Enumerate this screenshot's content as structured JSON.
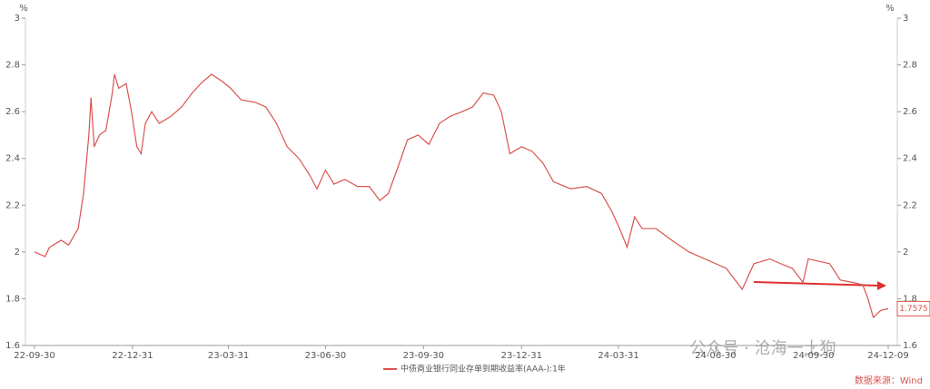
{
  "chart_data": {
    "type": "line",
    "y_unit": "%",
    "y2_unit": "%",
    "x": [
      "22-09-30",
      "22-10-10",
      "22-10-14",
      "22-10-25",
      "22-11-01",
      "22-11-10",
      "22-11-15",
      "22-11-20",
      "22-11-22",
      "22-11-25",
      "22-11-30",
      "22-12-06",
      "22-12-12",
      "22-12-14",
      "22-12-18",
      "22-12-25",
      "22-12-30",
      "23-01-04",
      "23-01-08",
      "23-01-12",
      "23-01-18",
      "23-01-25",
      "23-02-05",
      "23-02-15",
      "23-02-25",
      "23-03-05",
      "23-03-15",
      "23-03-25",
      "23-04-02",
      "23-04-12",
      "23-04-25",
      "23-05-05",
      "23-05-15",
      "23-05-25",
      "23-06-05",
      "23-06-15",
      "23-06-22",
      "23-06-30",
      "23-07-08",
      "23-07-18",
      "23-07-30",
      "23-08-10",
      "23-08-20",
      "23-08-28",
      "23-09-05",
      "23-09-15",
      "23-09-25",
      "23-10-05",
      "23-10-15",
      "23-10-25",
      "23-11-05",
      "23-11-15",
      "23-11-25",
      "23-12-05",
      "23-12-12",
      "23-12-20",
      "23-12-31",
      "24-01-10",
      "24-01-20",
      "24-01-30",
      "24-02-15",
      "24-03-01",
      "24-03-15",
      "24-03-25",
      "24-04-01",
      "24-04-08",
      "24-04-15",
      "24-04-22",
      "24-05-05",
      "24-05-20",
      "24-06-05",
      "24-06-20",
      "24-06-30",
      "24-07-10",
      "24-07-20",
      "24-07-25",
      "24-08-05",
      "24-08-20",
      "24-08-30",
      "24-09-10",
      "24-09-20",
      "24-09-25",
      "24-10-05",
      "24-10-15",
      "24-10-25",
      "24-11-05",
      "24-11-15",
      "24-11-20",
      "24-11-25",
      "24-12-02",
      "24-12-09"
    ],
    "series": [
      {
        "name": "中债商业银行同业存单到期收益率(AAA-):1年",
        "color": "#d9534f",
        "values": [
          2.0,
          1.98,
          2.02,
          2.05,
          2.03,
          2.1,
          2.25,
          2.5,
          2.66,
          2.45,
          2.5,
          2.52,
          2.68,
          2.76,
          2.7,
          2.72,
          2.6,
          2.45,
          2.42,
          2.55,
          2.6,
          2.55,
          2.58,
          2.62,
          2.68,
          2.72,
          2.76,
          2.73,
          2.7,
          2.65,
          2.64,
          2.62,
          2.55,
          2.45,
          2.4,
          2.33,
          2.27,
          2.35,
          2.29,
          2.31,
          2.28,
          2.28,
          2.22,
          2.25,
          2.35,
          2.48,
          2.5,
          2.46,
          2.55,
          2.58,
          2.6,
          2.62,
          2.68,
          2.67,
          2.6,
          2.42,
          2.45,
          2.43,
          2.38,
          2.3,
          2.27,
          2.28,
          2.25,
          2.17,
          2.1,
          2.02,
          2.15,
          2.1,
          2.1,
          2.05,
          2.0,
          1.97,
          1.95,
          1.93,
          1.87,
          1.84,
          1.95,
          1.97,
          1.95,
          1.93,
          1.87,
          1.97,
          1.96,
          1.95,
          1.88,
          1.87,
          1.86,
          1.8,
          1.72,
          1.75,
          1.7575
        ]
      }
    ],
    "xlim": [
      "22-09-30",
      "24-12-09"
    ],
    "xticks": [
      "22-09-30",
      "22-12-31",
      "23-03-31",
      "23-06-30",
      "23-09-30",
      "23-12-31",
      "24-03-31",
      "24-06-30",
      "24-09-30",
      "24-12-09"
    ],
    "ylim": [
      1.6,
      3
    ],
    "yticks": [
      1.6,
      1.8,
      2,
      2.2,
      2.4,
      2.6,
      2.8,
      3
    ],
    "y2lim": [
      1.6,
      3
    ],
    "y2ticks": [
      1.6,
      1.8,
      2,
      2.2,
      2.4,
      2.6,
      2.8,
      3
    ],
    "end_label": "1.7575",
    "watermark": "公众号 · 沧海一土狗",
    "source": "数据来源：Wind"
  }
}
